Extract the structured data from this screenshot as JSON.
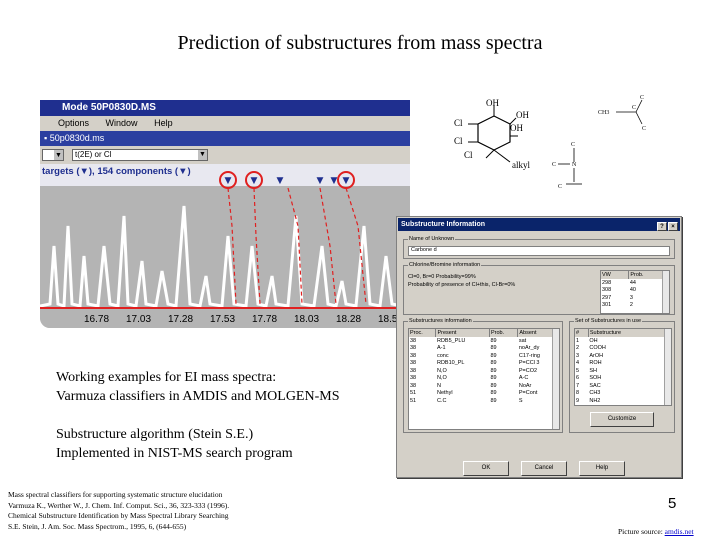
{
  "title": "Prediction of substructures from mass spectra",
  "amdis": {
    "titlebar": "Mode  50P0830D.MS",
    "menu": [
      "Options",
      "Window",
      "Help"
    ],
    "subtitle": "50p0830d.ms",
    "toolbar_combo": "t(2E) or Cl",
    "targets_text": "targets (▼), 154 components (▼)",
    "axis_ticks": [
      "16.78",
      "17.03",
      "17.28",
      "17.53",
      "17.78",
      "18.03",
      "18.28",
      "18.5"
    ],
    "colors": {
      "titlebar": "#1f2f8f",
      "peaks": "#ffffff",
      "highlight": "#e02020",
      "baseline": "#e02020"
    }
  },
  "dialog": {
    "title": "Substructure Information",
    "name_group": "Name of Unknown",
    "name_value": "Carbone d",
    "chlorine_group": "Chlorine/Bromine information",
    "chlorine_lines": [
      "Cl=0, Br=0 Probability=99%",
      "Probability of presence of Cl+this, Cl-Br=0%"
    ],
    "vw_headers": [
      "VW",
      "Prob."
    ],
    "vw_rows": [
      [
        "298",
        "44"
      ],
      [
        "308",
        "40"
      ],
      [
        "297",
        "3"
      ],
      [
        "301",
        "2"
      ]
    ],
    "sub_group": "Substructures information",
    "sub_headers": [
      "Proc.",
      "Present",
      "Prob.",
      "Absent"
    ],
    "sub_rows": [
      [
        "38",
        "RDB5_PLU",
        "89",
        "sat"
      ],
      [
        "38",
        "A-1",
        "89",
        "noAr_dy"
      ],
      [
        "38",
        "conc",
        "89",
        "C17-ring"
      ],
      [
        "38",
        "RDB10_PL",
        "89",
        "P=CCl 3"
      ],
      [
        "38",
        "N,O",
        "89",
        "P=CO2"
      ],
      [
        "38",
        "N,O",
        "89",
        "A-C"
      ],
      [
        "38",
        "N",
        "89",
        "NoAr"
      ],
      [
        "51",
        "Nethyl",
        "89",
        "P=Cont"
      ],
      [
        "51",
        "C.C",
        "89",
        "S"
      ]
    ],
    "set_group": "Set of Substructures in use",
    "set_headers": [
      "#",
      "Substructure"
    ],
    "set_rows": [
      [
        "1",
        "OH"
      ],
      [
        "2",
        "COOH"
      ],
      [
        "3",
        "ArOH"
      ],
      [
        "4",
        "ROH"
      ],
      [
        "5",
        "SH"
      ],
      [
        "6",
        "SOH"
      ],
      [
        "7",
        "SAC"
      ],
      [
        "8",
        "CH3"
      ],
      [
        "9",
        "NH2"
      ]
    ],
    "customize_label": "Customize",
    "ok_label": "OK",
    "cancel_label": "Cancel",
    "help_label": "Help"
  },
  "structures": {
    "ring_labels": [
      "OH",
      "OH",
      "OH",
      "Cl",
      "Cl",
      "Cl",
      "alkyl"
    ],
    "acetyl_labels": [
      "C",
      "CH3",
      "C",
      "C"
    ],
    "amine_labels": [
      "C",
      "C",
      "N",
      "C"
    ]
  },
  "text": {
    "working_line1": "Working examples for EI mass spectra:",
    "working_line2_prefix": "Varmuza classifiers in ",
    "amdis": "AMDIS",
    "and": " and ",
    "molgen": "MOLGEN-MS",
    "stein_line1": "Substructure algorithm (Stein S.E.)",
    "stein_line2": "Implemented in NIST-MS search program"
  },
  "references": [
    "Mass spectral classifiers for supporting systematic structure elucidation",
    "Varmuza K., Werther W., J. Chem. Inf. Comput. Sci., 36, 323-333 (1996).",
    "Chemical Substructure Identification by Mass Spectral Library Searching",
    "S.E. Stein, J. Am. Soc. Mass Spectrom., 1995, 6, (644-655)"
  ],
  "page_number": "5",
  "source_prefix": "Picture source: ",
  "source_link": "amdis.net"
}
